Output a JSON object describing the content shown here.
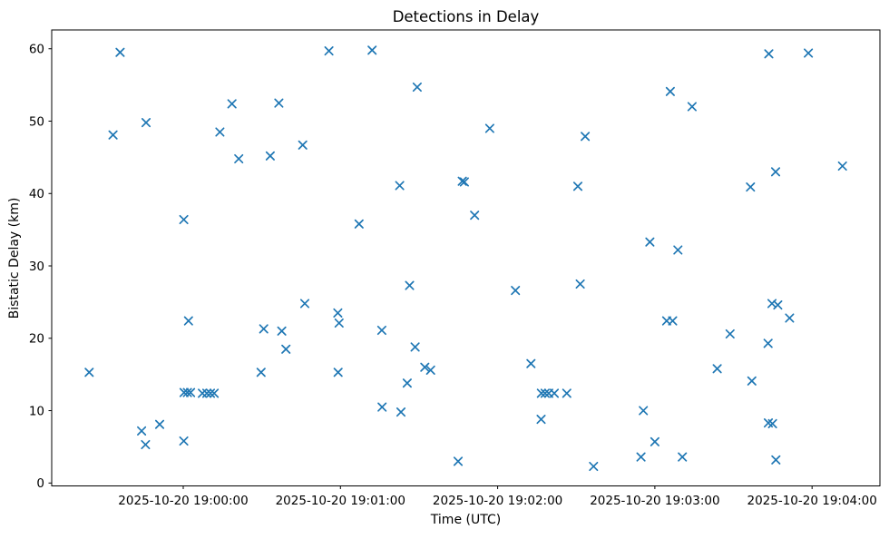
{
  "figure": {
    "title": "Detections in Delay",
    "xlabel": "Time (UTC)",
    "ylabel": "Bistatic Delay (km)"
  },
  "chart_data": {
    "type": "scatter",
    "title": "Detections in Delay",
    "xlabel": "Time (UTC)",
    "ylabel": "Bistatic Delay (km)",
    "marker": "x",
    "marker_color": "#1f77b4",
    "grid": false,
    "legend": null,
    "x_unit": "seconds after 2025-10-20 19:00:00 UTC",
    "xlim": [
      -50.2,
      265.9
    ],
    "ylim": [
      -0.4,
      62.6
    ],
    "x_ticks": [
      {
        "value": 0,
        "label": "2025-10-20 19:00:00"
      },
      {
        "value": 60,
        "label": "2025-10-20 19:01:00"
      },
      {
        "value": 120,
        "label": "2025-10-20 19:02:00"
      },
      {
        "value": 180,
        "label": "2025-10-20 19:03:00"
      },
      {
        "value": 240,
        "label": "2025-10-20 19:04:00"
      }
    ],
    "y_ticks": [
      0,
      10,
      20,
      30,
      40,
      50,
      60
    ],
    "points": [
      [
        -35.9,
        15.3
      ],
      [
        -26.8,
        48.1
      ],
      [
        -24.1,
        59.5
      ],
      [
        -15.9,
        7.2
      ],
      [
        -14.4,
        5.3
      ],
      [
        -14.2,
        49.8
      ],
      [
        -9.0,
        8.1
      ],
      [
        0.2,
        36.4
      ],
      [
        0.2,
        5.8
      ],
      [
        0.3,
        12.5
      ],
      [
        1.6,
        12.5
      ],
      [
        2.0,
        22.4
      ],
      [
        2.8,
        12.5
      ],
      [
        7.3,
        12.4
      ],
      [
        9.0,
        12.4
      ],
      [
        10.4,
        12.4
      ],
      [
        11.8,
        12.4
      ],
      [
        14.0,
        48.5
      ],
      [
        18.6,
        52.4
      ],
      [
        21.2,
        44.8
      ],
      [
        29.7,
        15.3
      ],
      [
        30.7,
        21.3
      ],
      [
        33.2,
        45.2
      ],
      [
        36.5,
        52.5
      ],
      [
        37.6,
        21.0
      ],
      [
        39.2,
        18.5
      ],
      [
        45.6,
        46.7
      ],
      [
        46.4,
        24.8
      ],
      [
        55.6,
        59.7
      ],
      [
        59.0,
        23.5
      ],
      [
        59.1,
        15.3
      ],
      [
        59.5,
        22.1
      ],
      [
        67.1,
        35.8
      ],
      [
        72.1,
        59.8
      ],
      [
        75.8,
        21.1
      ],
      [
        75.9,
        10.5
      ],
      [
        82.6,
        41.1
      ],
      [
        83.1,
        9.8
      ],
      [
        85.5,
        13.8
      ],
      [
        86.4,
        27.3
      ],
      [
        88.5,
        18.8
      ],
      [
        89.3,
        54.7
      ],
      [
        92.2,
        16.0
      ],
      [
        94.4,
        15.6
      ],
      [
        104.9,
        3.0
      ],
      [
        106.5,
        41.7
      ],
      [
        107.3,
        41.6
      ],
      [
        111.2,
        37.0
      ],
      [
        117.0,
        49.0
      ],
      [
        126.8,
        26.6
      ],
      [
        132.7,
        16.5
      ],
      [
        136.6,
        8.8
      ],
      [
        136.7,
        12.4
      ],
      [
        138.1,
        12.4
      ],
      [
        139.5,
        12.4
      ],
      [
        141.6,
        12.4
      ],
      [
        146.4,
        12.4
      ],
      [
        150.6,
        41.0
      ],
      [
        151.5,
        27.5
      ],
      [
        153.4,
        47.9
      ],
      [
        156.6,
        2.3
      ],
      [
        174.7,
        3.6
      ],
      [
        175.6,
        10.0
      ],
      [
        178.1,
        33.3
      ],
      [
        180.0,
        5.7
      ],
      [
        184.5,
        22.4
      ],
      [
        185.9,
        54.1
      ],
      [
        186.8,
        22.4
      ],
      [
        188.8,
        32.2
      ],
      [
        190.5,
        3.6
      ],
      [
        194.2,
        52.0
      ],
      [
        203.8,
        15.8
      ],
      [
        208.7,
        20.6
      ],
      [
        216.5,
        40.9
      ],
      [
        217.0,
        14.1
      ],
      [
        223.2,
        19.3
      ],
      [
        223.3,
        8.3
      ],
      [
        223.5,
        59.3
      ],
      [
        224.7,
        24.8
      ],
      [
        224.9,
        8.2
      ],
      [
        226.1,
        43.0
      ],
      [
        226.2,
        3.2
      ],
      [
        226.9,
        24.6
      ],
      [
        231.4,
        22.8
      ],
      [
        238.6,
        59.4
      ],
      [
        251.6,
        43.8
      ]
    ]
  },
  "style": {
    "background": "#ffffff",
    "spine_color": "#000000",
    "text_color": "#000000"
  }
}
